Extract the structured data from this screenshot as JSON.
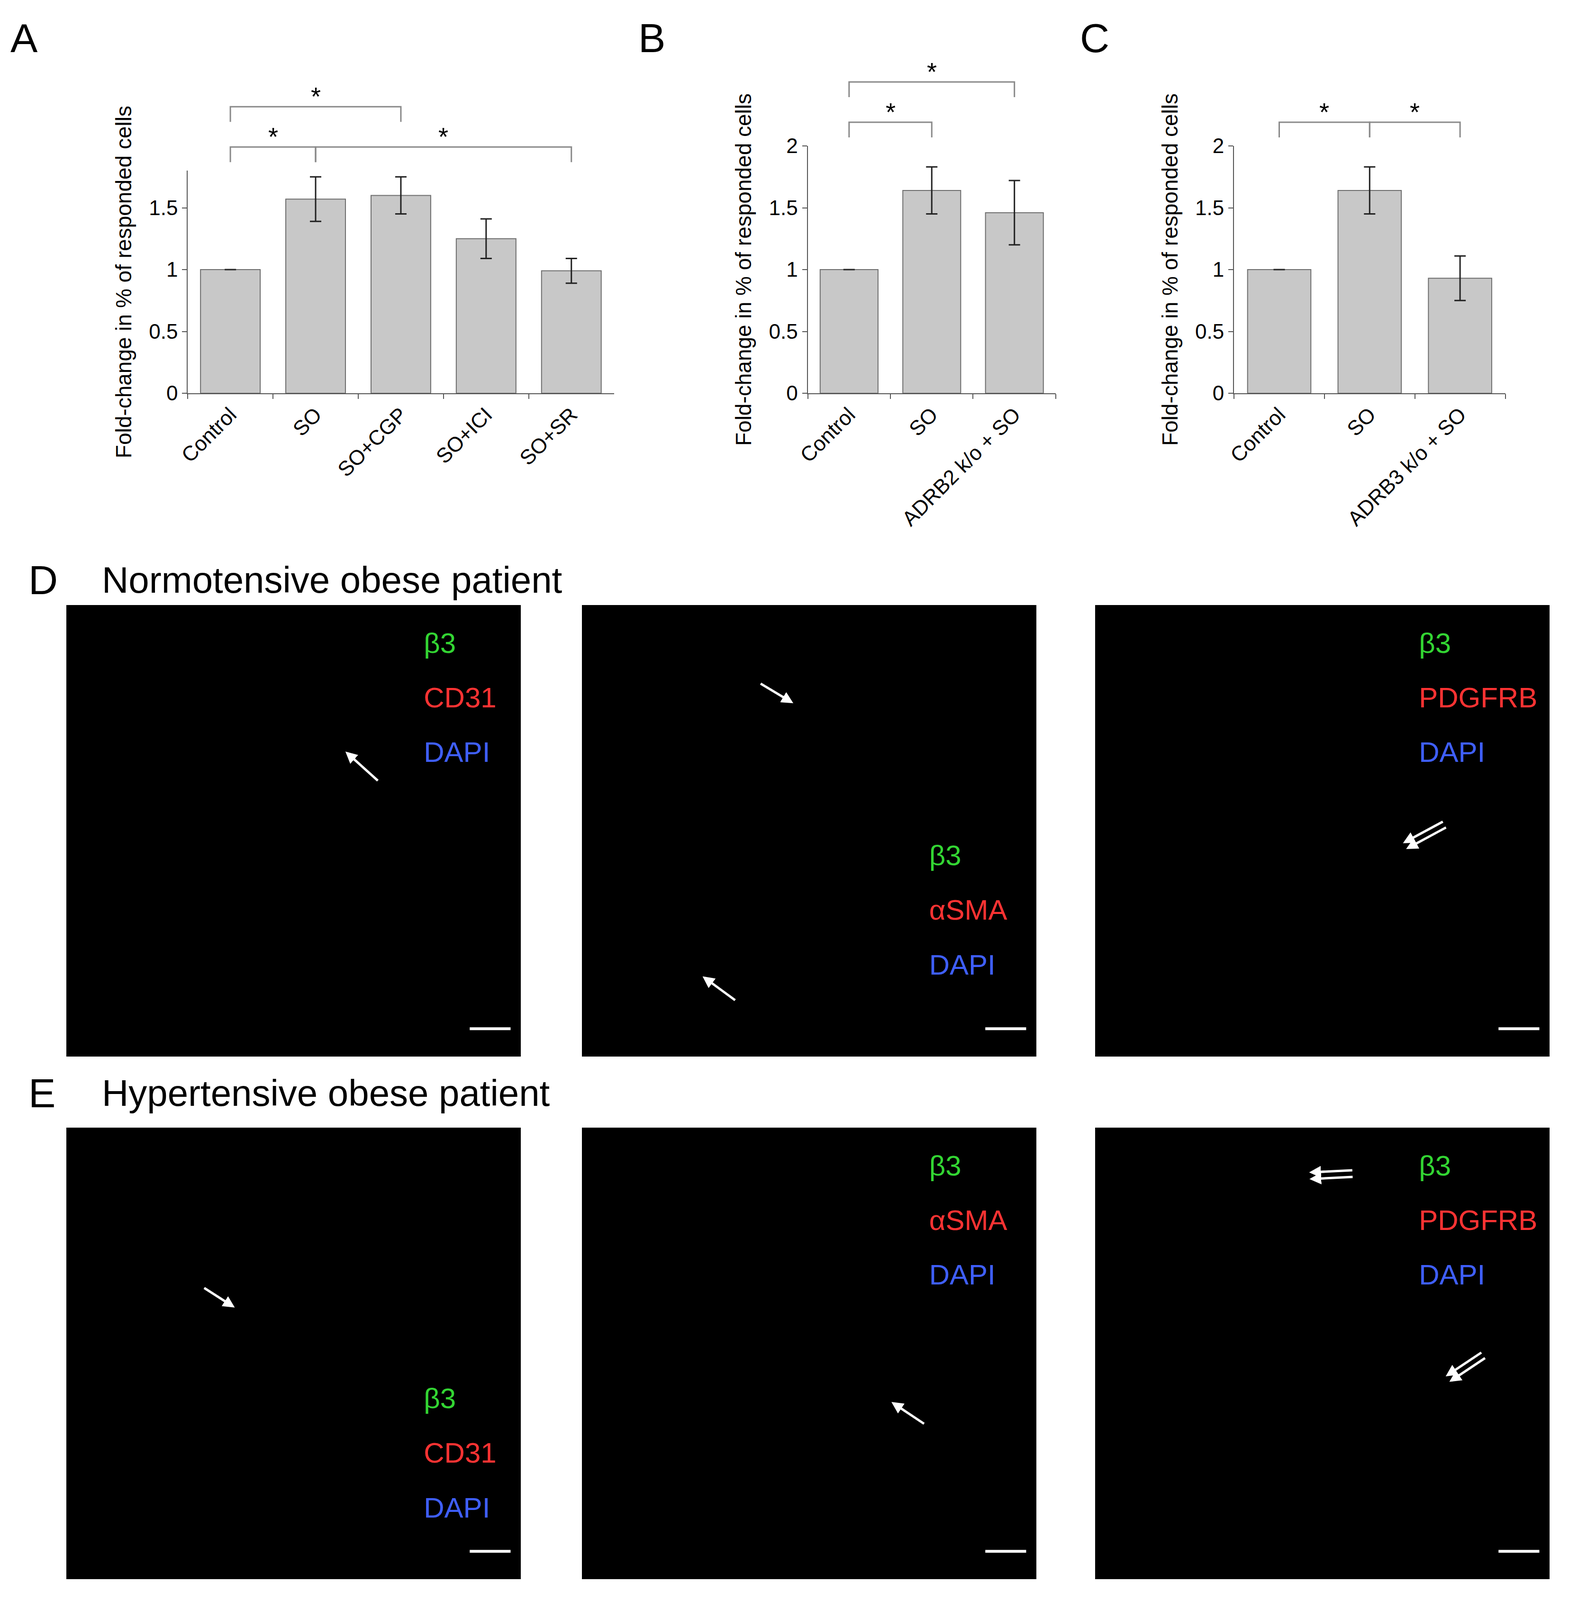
{
  "chart_data": [
    {
      "panel": "A",
      "type": "bar",
      "categories": [
        "Control",
        "SO",
        "SO+CGP",
        "SO+ICI",
        "SO+SR"
      ],
      "values": [
        1,
        1.57,
        1.6,
        1.25,
        0.99
      ],
      "errors": [
        null,
        0.18,
        0.15,
        0.16,
        0.1
      ],
      "color": "#c8c8c8",
      "ylabel": "Fold-change in % of responded cells",
      "ylim": [
        0,
        1.8
      ],
      "yticks": [
        0,
        0.5,
        1,
        1.5
      ],
      "grid": false,
      "significance": [
        {
          "from": "Control",
          "to": "SO",
          "label": "*"
        },
        {
          "from": "Control",
          "to": "SO+CGP",
          "label": "*"
        },
        {
          "from": "SO",
          "to": "SO+SR",
          "label": "*"
        }
      ]
    },
    {
      "panel": "B",
      "type": "bar",
      "categories": [
        "Control",
        "SO",
        "ADRB2 k/o + SO"
      ],
      "values": [
        1,
        1.64,
        1.46
      ],
      "errors": [
        null,
        0.19,
        0.26
      ],
      "color": "#c8c8c8",
      "ylabel": "Fold-change in % of responded cells",
      "ylim": [
        0,
        2
      ],
      "yticks": [
        0,
        0.5,
        1,
        1.5,
        2
      ],
      "grid": false,
      "significance": [
        {
          "from": "Control",
          "to": "SO",
          "label": "*"
        },
        {
          "from": "Control",
          "to": "ADRB2 k/o + SO",
          "label": "*"
        }
      ]
    },
    {
      "panel": "C",
      "type": "bar",
      "categories": [
        "Control",
        "SO",
        "ADRB3 k/o + SO"
      ],
      "values": [
        1,
        1.64,
        0.93
      ],
      "errors": [
        null,
        0.19,
        0.18
      ],
      "color": "#c8c8c8",
      "ylabel": "Fold-change in % of responded cells",
      "ylim": [
        0,
        2
      ],
      "yticks": [
        0,
        0.5,
        1,
        1.5,
        2
      ],
      "grid": false,
      "significance": [
        {
          "from": "Control",
          "to": "SO",
          "label": "*"
        },
        {
          "from": "SO",
          "to": "ADRB3 k/o + SO",
          "label": "*"
        }
      ]
    }
  ],
  "image_rows": [
    {
      "panel": "D",
      "title": "Normotensive obese patient",
      "images": [
        {
          "stains": [
            {
              "text": "β3",
              "color": "#33d633"
            },
            {
              "text": "CD31",
              "color": "#ff3333"
            },
            {
              "text": "DAPI",
              "color": "#3f5fff"
            }
          ]
        },
        {
          "stains": [
            {
              "text": "β3",
              "color": "#33d633"
            },
            {
              "text": "αSMA",
              "color": "#ff3333"
            },
            {
              "text": "DAPI",
              "color": "#3f5fff"
            }
          ]
        },
        {
          "stains": [
            {
              "text": "β3",
              "color": "#33d633"
            },
            {
              "text": "PDGFRB",
              "color": "#ff3333"
            },
            {
              "text": "DAPI",
              "color": "#3f5fff"
            }
          ]
        }
      ]
    },
    {
      "panel": "E",
      "title": "Hypertensive obese patient",
      "images": [
        {
          "stains": [
            {
              "text": "β3",
              "color": "#33d633"
            },
            {
              "text": "CD31",
              "color": "#ff3333"
            },
            {
              "text": "DAPI",
              "color": "#3f5fff"
            }
          ]
        },
        {
          "stains": [
            {
              "text": "β3",
              "color": "#33d633"
            },
            {
              "text": "αSMA",
              "color": "#ff3333"
            },
            {
              "text": "DAPI",
              "color": "#3f5fff"
            }
          ]
        },
        {
          "stains": [
            {
              "text": "β3",
              "color": "#33d633"
            },
            {
              "text": "PDGFRB",
              "color": "#ff3333"
            },
            {
              "text": "DAPI",
              "color": "#3f5fff"
            }
          ]
        }
      ]
    }
  ]
}
